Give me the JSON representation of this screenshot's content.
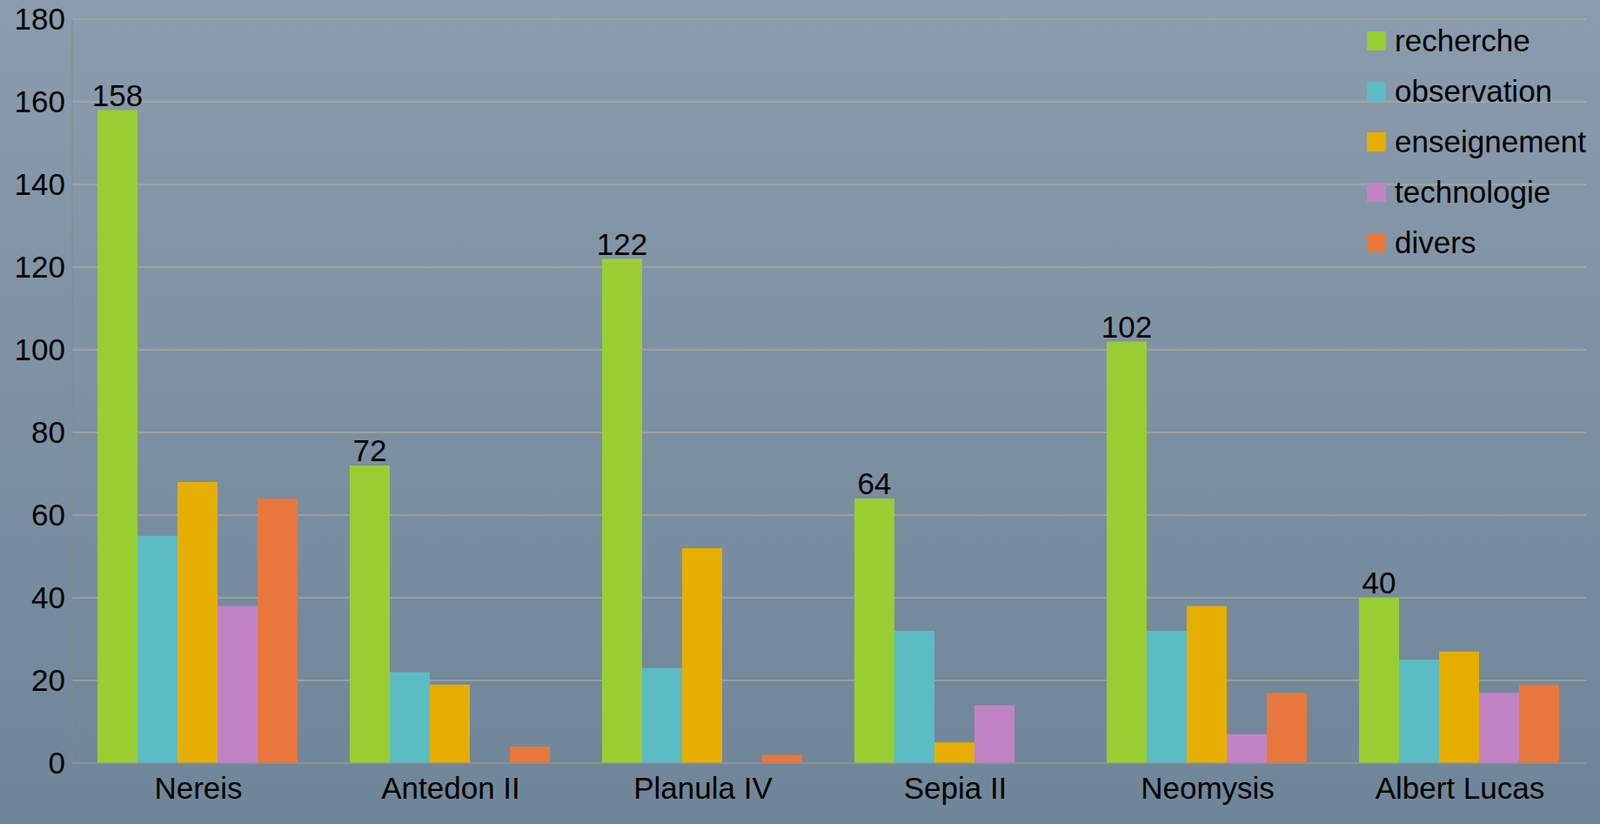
{
  "chart_data": {
    "type": "bar",
    "categories": [
      "Nereis",
      "Antedon II",
      "Planula IV",
      "Sepia II",
      "Neomysis",
      "Albert Lucas"
    ],
    "series": [
      {
        "name": "recherche",
        "color": "#9acd32",
        "values": [
          158,
          72,
          122,
          64,
          102,
          40
        ],
        "data_labels": true
      },
      {
        "name": "observation",
        "color": "#5bbcc4",
        "values": [
          55,
          22,
          23,
          32,
          32,
          25
        ]
      },
      {
        "name": "enseignement",
        "color": "#e6ae00",
        "values": [
          68,
          19,
          52,
          5,
          38,
          27
        ]
      },
      {
        "name": "technologie",
        "color": "#c283c4",
        "values": [
          38,
          0,
          0,
          14,
          7,
          17
        ]
      },
      {
        "name": "divers",
        "color": "#e8773d",
        "values": [
          64,
          4,
          2,
          0,
          17,
          19
        ]
      }
    ],
    "ylim": [
      0,
      180
    ],
    "yticks": [
      0,
      20,
      40,
      60,
      80,
      100,
      120,
      140,
      160,
      180
    ],
    "grid": true,
    "legend": "top-right"
  }
}
